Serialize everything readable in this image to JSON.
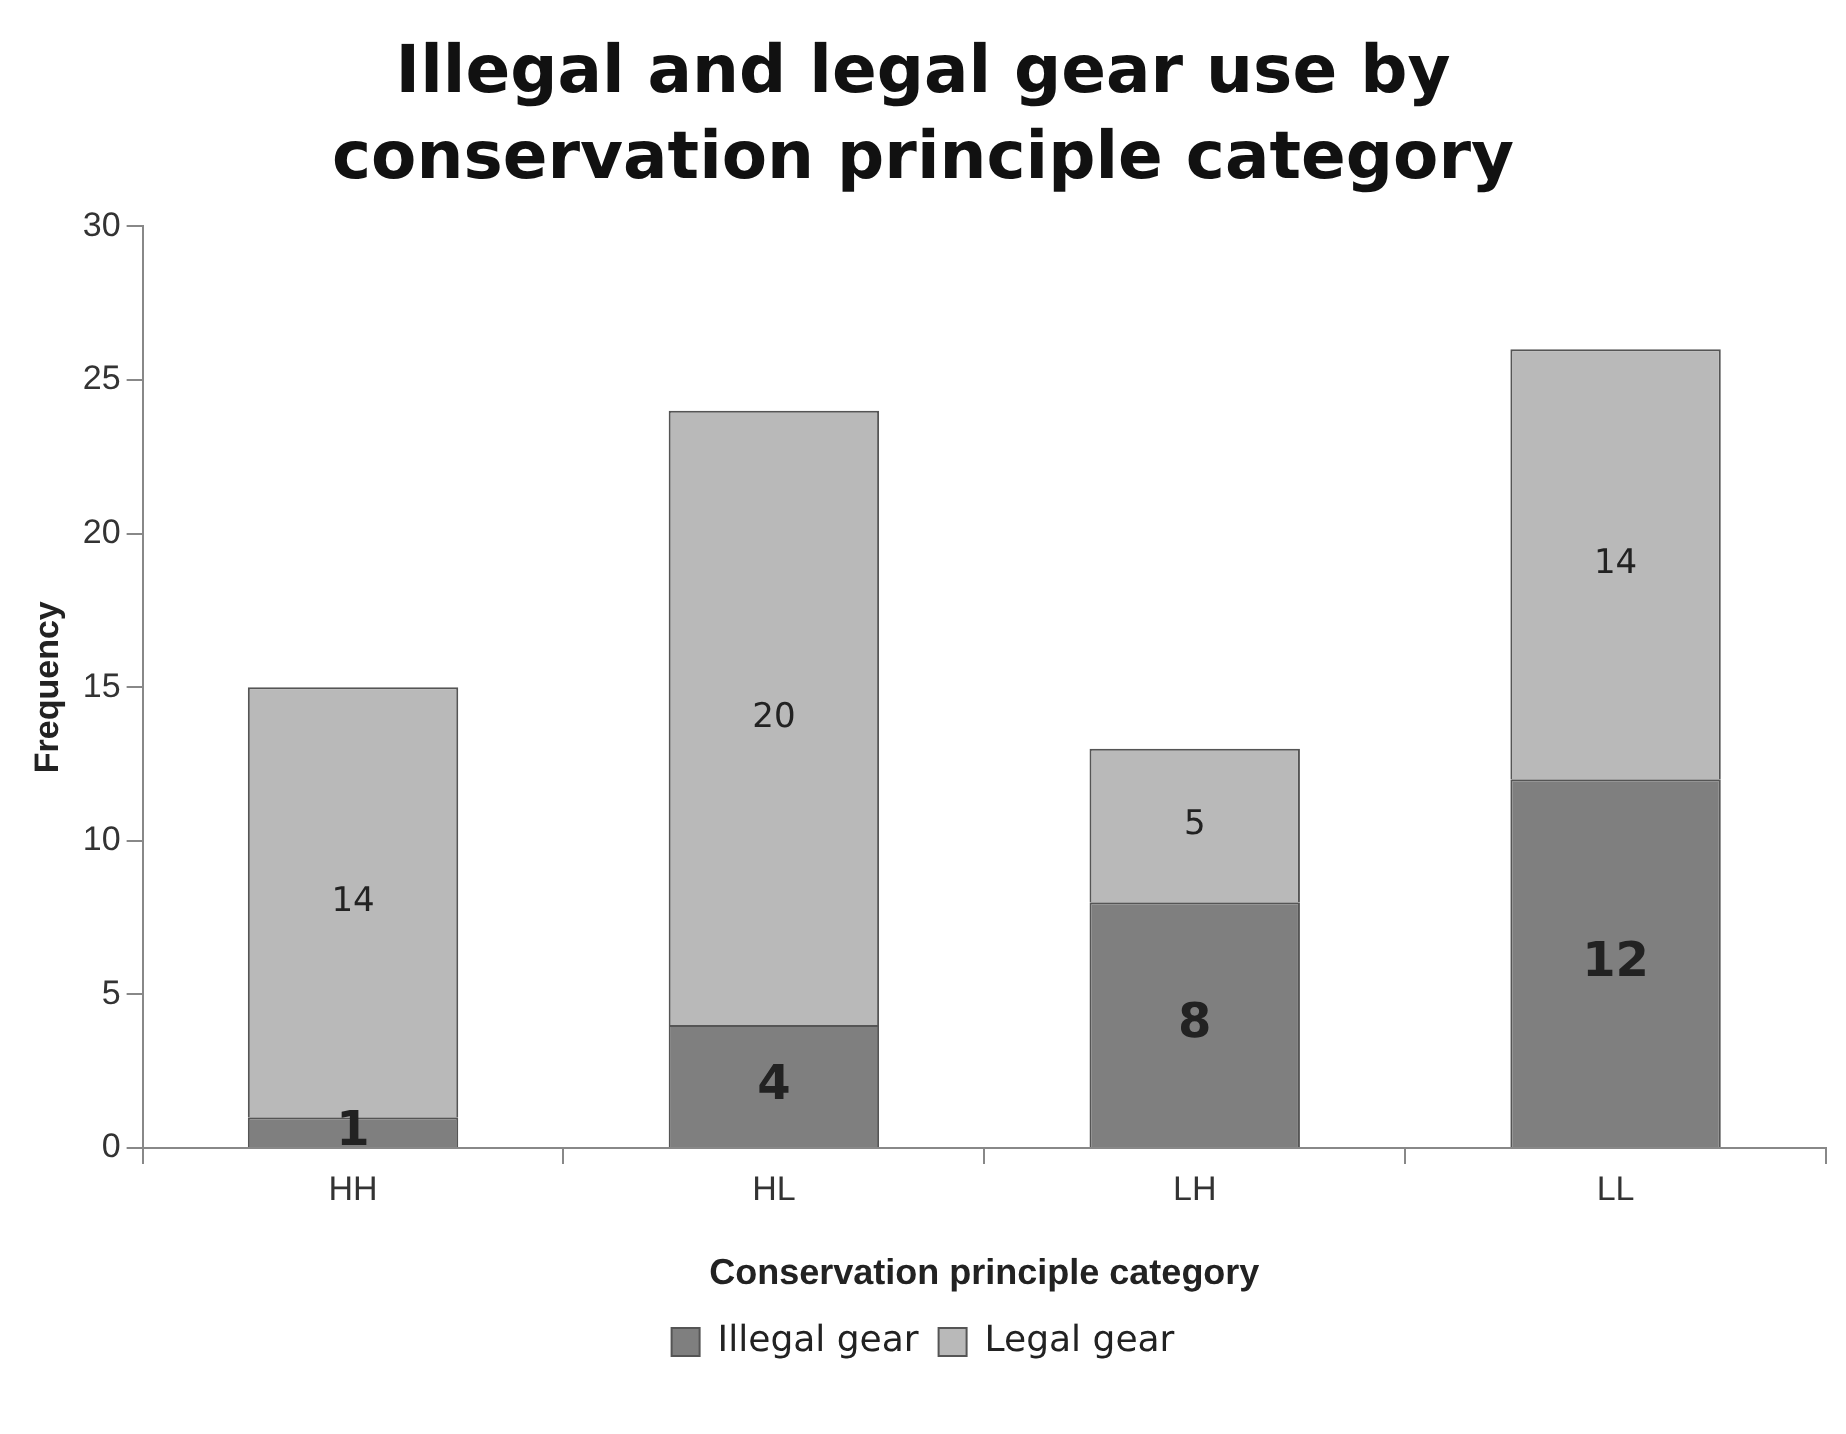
{
  "chart_data": {
    "type": "bar",
    "title": "Illegal and legal gear use by conservation principle category",
    "xlabel": "Conservation principle category",
    "ylabel": "Frequency",
    "categories": [
      "HH",
      "HL",
      "LH",
      "LL"
    ],
    "series": [
      {
        "name": "Illegal gear",
        "color": "#7f7f7f",
        "values": [
          1,
          4,
          8,
          12
        ]
      },
      {
        "name": "Legal gear",
        "color": "#b9b9b9",
        "values": [
          14,
          20,
          5,
          14
        ]
      }
    ],
    "stacked": true,
    "ylim": [
      0,
      30
    ],
    "yticks": [
      0,
      5,
      10,
      15,
      20,
      25,
      30
    ],
    "grid": false,
    "legend": "bottom",
    "data_labels": true
  }
}
